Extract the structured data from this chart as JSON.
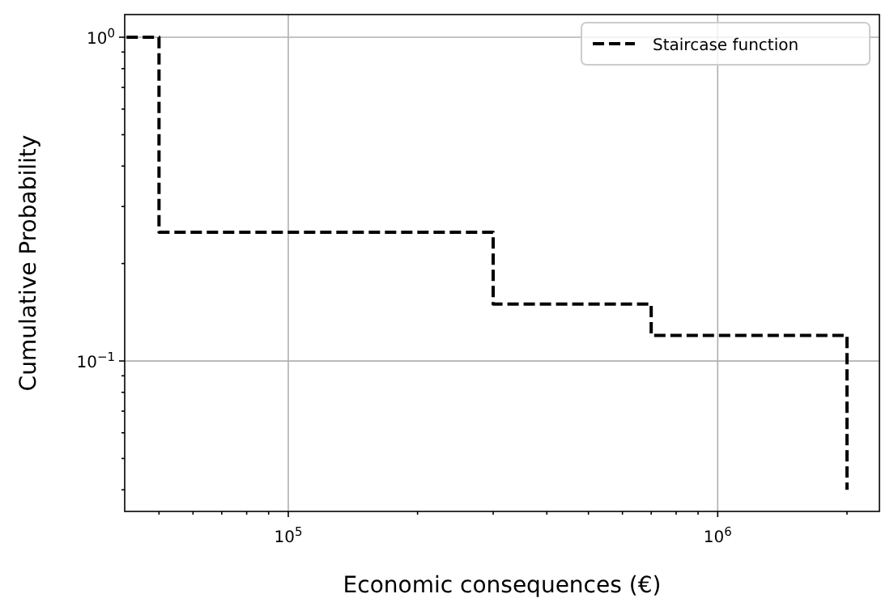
{
  "chart_data": {
    "type": "step",
    "xlabel": "Economic consequences (€)",
    "ylabel": "Cumulative Probability",
    "log": "xy",
    "grid": true,
    "legend": "top right",
    "line_style": "dashed",
    "marker": "none",
    "xlim": [
      41600,
      2380000
    ],
    "ylim": [
      0.0343,
      1.175
    ],
    "xticks": [
      {
        "value": 50000,
        "label": null
      },
      {
        "value": 60000,
        "label": null
      },
      {
        "value": 70000,
        "label": null
      },
      {
        "value": 80000,
        "label": null
      },
      {
        "value": 90000,
        "label": null
      },
      {
        "value": 100000,
        "label": "10$^{5}$"
      },
      {
        "value": 200000,
        "label": null
      },
      {
        "value": 300000,
        "label": null
      },
      {
        "value": 400000,
        "label": null
      },
      {
        "value": 500000,
        "label": null
      },
      {
        "value": 600000,
        "label": null
      },
      {
        "value": 700000,
        "label": null
      },
      {
        "value": 800000,
        "label": null
      },
      {
        "value": 900000,
        "label": null
      },
      {
        "value": 1000000,
        "label": "10$^{6}$"
      },
      {
        "value": 2000000,
        "label": null
      }
    ],
    "yticks": [
      {
        "value": 0.04,
        "label": null
      },
      {
        "value": 0.05,
        "label": null
      },
      {
        "value": 0.06,
        "label": null
      },
      {
        "value": 0.07,
        "label": null
      },
      {
        "value": 0.08,
        "label": null
      },
      {
        "value": 0.09,
        "label": null
      },
      {
        "value": 0.1,
        "label": "10$^{−1}$"
      },
      {
        "value": 0.2,
        "label": null
      },
      {
        "value": 0.3,
        "label": null
      },
      {
        "value": 0.4,
        "label": null
      },
      {
        "value": 0.5,
        "label": null
      },
      {
        "value": 0.6,
        "label": null
      },
      {
        "value": 0.7,
        "label": null
      },
      {
        "value": 0.8,
        "label": null
      },
      {
        "value": 0.9,
        "label": null
      },
      {
        "value": 1,
        "label": "10$^{0}$"
      }
    ],
    "series": [
      {
        "name": "Staircase function",
        "color": "#000000",
        "x": [
          42000,
          50000,
          300000,
          700000,
          2000000
        ],
        "values": [
          1,
          0.25,
          0.15,
          0.12,
          0.04
        ]
      }
    ]
  }
}
